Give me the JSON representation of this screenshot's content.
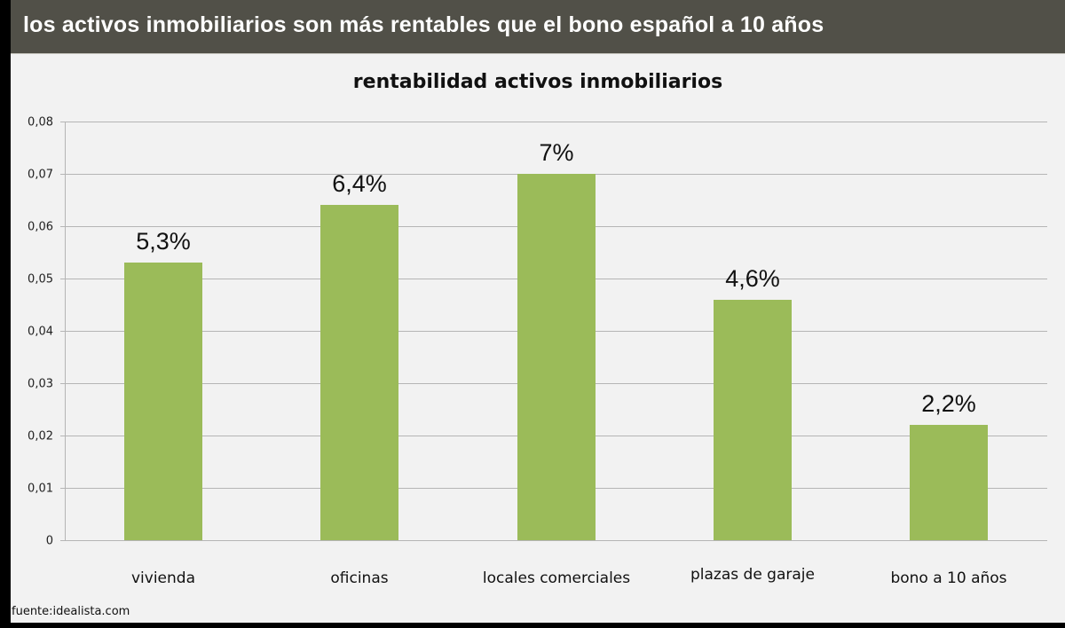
{
  "header": {
    "title": "los activos inmobiliarios son más rentables que el bono español a 10 años"
  },
  "colors": {
    "header_bg": "#515048",
    "bar": "#9bbb59",
    "background": "#f2f2f2",
    "gridline": "#b5b5b5"
  },
  "source": "fuente:idealista.com",
  "chart_data": {
    "type": "bar",
    "title": "rentabilidad activos inmobiliarios",
    "categories": [
      "vivienda",
      "oficinas",
      "locales comerciales",
      "plazas de garaje",
      "bono a 10 años"
    ],
    "values": [
      0.053,
      0.064,
      0.07,
      0.046,
      0.022
    ],
    "data_labels": [
      "5,3%",
      "6,4%",
      "7%",
      "4,6%",
      "2,2%"
    ],
    "xlabel": "",
    "ylabel": "",
    "ylim": [
      0,
      0.08
    ],
    "yticks": [
      "0",
      "0,01",
      "0,02",
      "0,03",
      "0,04",
      "0,05",
      "0,06",
      "0,07",
      "0,08"
    ],
    "grid": true,
    "legend": "none"
  }
}
